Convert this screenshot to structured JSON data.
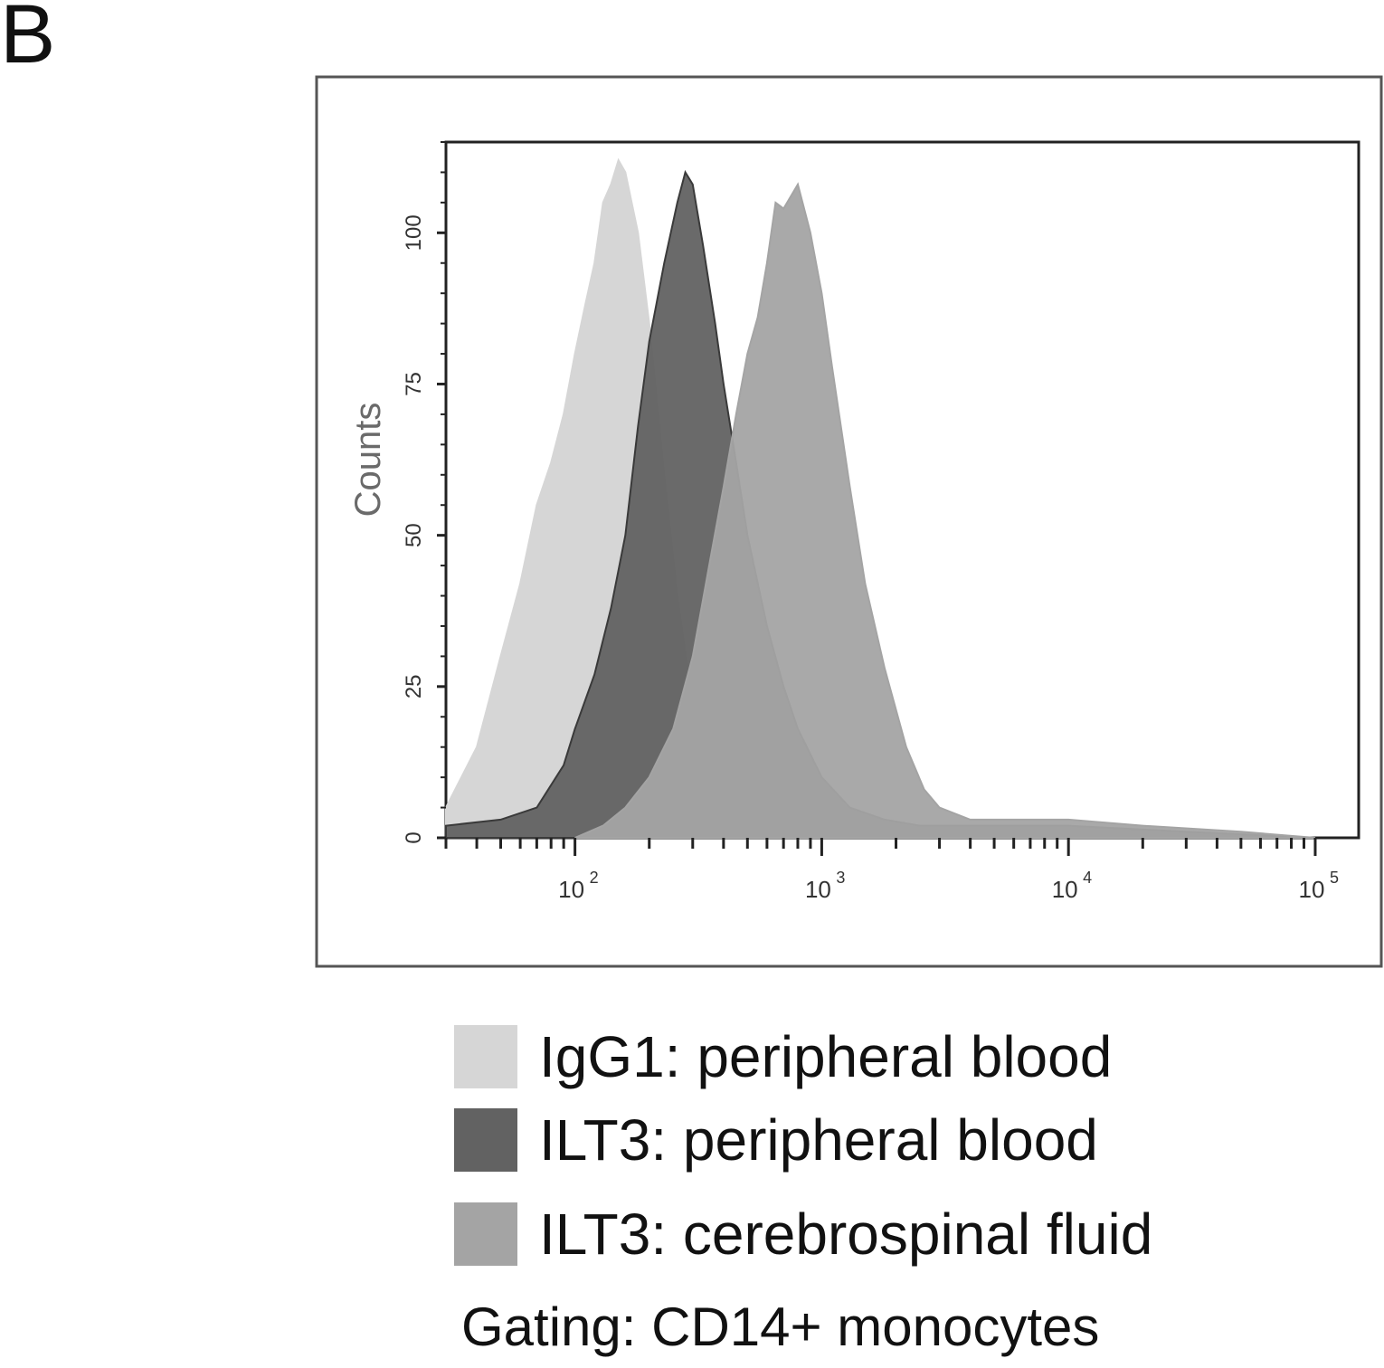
{
  "panel_label": "B",
  "chart_data": {
    "type": "area",
    "subtype": "flow cytometry histogram overlay",
    "xscale": "log",
    "xlim": [
      30,
      150000
    ],
    "ylim": [
      0,
      115
    ],
    "ylabel": "Counts",
    "yticks": [
      0,
      25,
      50,
      75,
      100
    ],
    "xticks": [
      100,
      1000,
      10000,
      100000
    ],
    "xtick_labels": [
      {
        "base": "10",
        "exp": "2"
      },
      {
        "base": "10",
        "exp": "3"
      },
      {
        "base": "10",
        "exp": "4"
      },
      {
        "base": "10",
        "exp": "5"
      }
    ],
    "series": [
      {
        "name": "IgG1: peripheral blood",
        "color": "#d6d6d6",
        "x": [
          30,
          40,
          50,
          60,
          70,
          80,
          90,
          100,
          110,
          120,
          130,
          140,
          150,
          160,
          180,
          200,
          230,
          260,
          300,
          350,
          400,
          500,
          700,
          1000,
          2000,
          5000
        ],
        "y": [
          5,
          15,
          30,
          42,
          55,
          62,
          70,
          80,
          88,
          95,
          105,
          108,
          112,
          110,
          100,
          85,
          60,
          40,
          22,
          12,
          6,
          3,
          2,
          1,
          0,
          0
        ]
      },
      {
        "name": "ILT3: peripheral blood",
        "color": "#626262",
        "x": [
          30,
          50,
          70,
          90,
          100,
          120,
          140,
          160,
          180,
          200,
          230,
          260,
          280,
          300,
          330,
          370,
          400,
          450,
          500,
          600,
          700,
          800,
          1000,
          1300,
          1800,
          2500,
          3500,
          5000,
          10000,
          30000,
          100000
        ],
        "y": [
          2,
          3,
          5,
          12,
          18,
          27,
          38,
          50,
          68,
          82,
          95,
          105,
          110,
          108,
          98,
          85,
          75,
          62,
          50,
          35,
          25,
          18,
          10,
          5,
          3,
          2,
          2,
          2,
          2,
          1,
          0
        ]
      },
      {
        "name": "ILT3: cerebrospinal fluid",
        "color": "#a4a4a4",
        "x": [
          100,
          130,
          160,
          200,
          250,
          300,
          350,
          400,
          450,
          500,
          550,
          600,
          650,
          700,
          800,
          900,
          1000,
          1100,
          1300,
          1500,
          1800,
          2200,
          2600,
          3000,
          4000,
          6000,
          10000,
          20000,
          50000,
          100000
        ],
        "y": [
          0,
          2,
          5,
          10,
          18,
          30,
          45,
          58,
          70,
          80,
          86,
          95,
          105,
          104,
          108,
          100,
          90,
          78,
          58,
          42,
          28,
          15,
          8,
          5,
          3,
          3,
          3,
          2,
          1,
          0
        ]
      }
    ],
    "legend_position": "bottom",
    "annotation": "Gating: CD14+ monocytes"
  }
}
